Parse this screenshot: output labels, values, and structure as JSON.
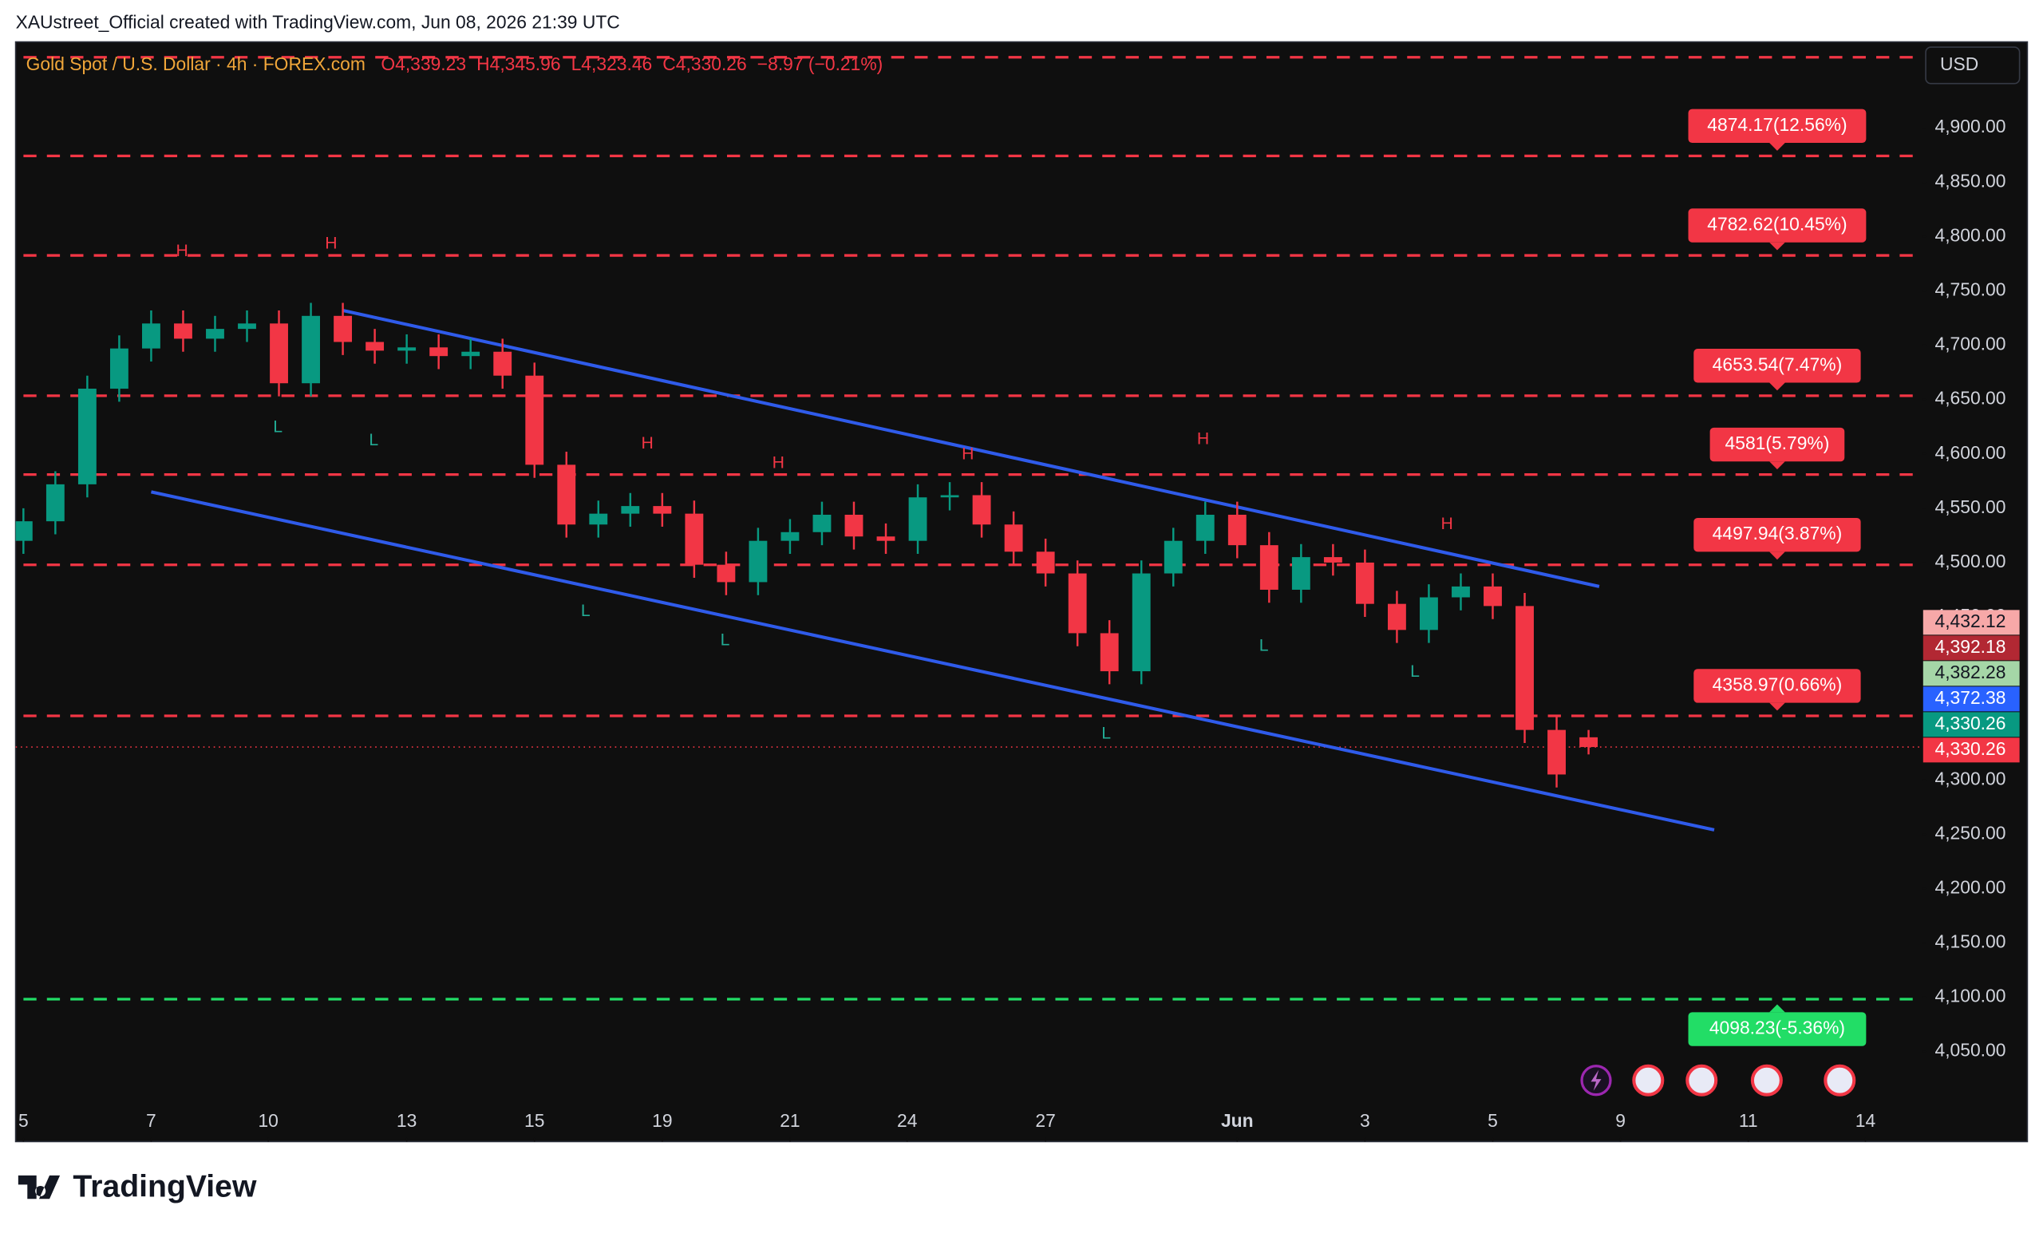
{
  "header": {
    "credit": "XAUstreet_Official created with TradingView.com, Jun 08, 2026 21:39 UTC",
    "symbol": "Gold Spot / U.S. Dollar · 4h · FOREX.com",
    "ohlc": [
      {
        "key": "O",
        "value": "4,339.23"
      },
      {
        "key": "H",
        "value": "4,345.96"
      },
      {
        "key": "L",
        "value": "4,323.46"
      },
      {
        "key": "C",
        "value": "4,330.26"
      }
    ],
    "change": "−8.97 (−0.21%)",
    "currency": "USD"
  },
  "chart_data": {
    "type": "candlestick",
    "x": [
      0,
      3,
      6,
      9,
      12,
      15,
      18,
      21,
      24,
      27,
      30,
      33,
      36,
      39,
      42,
      45,
      48,
      51,
      54,
      57,
      60,
      63,
      66,
      69,
      72,
      75,
      78,
      81,
      84,
      87,
      90,
      93,
      96,
      99,
      102,
      105,
      108,
      111,
      114,
      117,
      120,
      123,
      126,
      129,
      132,
      135,
      138,
      141,
      144,
      147
    ],
    "open": [
      4520,
      4538,
      4572,
      4660,
      4697,
      4720,
      4706,
      4715,
      4720,
      4665,
      4727,
      4703,
      4695,
      4698,
      4690,
      4694,
      4672,
      4590,
      4535,
      4545,
      4552,
      4545,
      4498,
      4482,
      4520,
      4528,
      4544,
      4524,
      4520,
      4560,
      4562,
      4535,
      4510,
      4490,
      4435,
      4400,
      4490,
      4520,
      4544,
      4516,
      4475,
      4505,
      4500,
      4462,
      4438,
      4468,
      4478,
      4460,
      4346,
      4339.23
    ],
    "high": [
      4550,
      4584,
      4672,
      4709,
      4732,
      4732,
      4727,
      4732,
      4732,
      4739,
      4739,
      4715,
      4710,
      4710,
      4706,
      4706,
      4684,
      4602,
      4557,
      4564,
      4564,
      4557,
      4510,
      4532,
      4540,
      4556,
      4556,
      4536,
      4572,
      4574,
      4574,
      4547,
      4522,
      4502,
      4447,
      4502,
      4532,
      4556,
      4556,
      4528,
      4517,
      4517,
      4512,
      4474,
      4480,
      4490,
      4490,
      4472,
      4358,
      4345.96
    ],
    "low": [
      4508,
      4526,
      4560,
      4648,
      4685,
      4694,
      4694,
      4703,
      4653,
      4653,
      4691,
      4683,
      4683,
      4678,
      4678,
      4660,
      4578,
      4523,
      4523,
      4533,
      4533,
      4486,
      4470,
      4470,
      4508,
      4516,
      4512,
      4508,
      4508,
      4548,
      4523,
      4498,
      4478,
      4423,
      4388,
      4388,
      4478,
      4508,
      4504,
      4463,
      4463,
      4488,
      4450,
      4426,
      4426,
      4456,
      4448,
      4334,
      4293,
      4323.46
    ],
    "close": [
      4538,
      4572,
      4660,
      4697,
      4720,
      4706,
      4715,
      4720,
      4665,
      4727,
      4703,
      4695,
      4698,
      4690,
      4694,
      4672,
      4590,
      4535,
      4545,
      4552,
      4545,
      4498,
      4482,
      4520,
      4528,
      4544,
      4524,
      4520,
      4560,
      4562,
      4535,
      4510,
      4490,
      4435,
      4400,
      4490,
      4520,
      4544,
      4516,
      4475,
      4505,
      4500,
      4462,
      4438,
      4468,
      4478,
      4460,
      4346,
      4305,
      4330.26
    ],
    "up_color": "#089981",
    "down_color": "#f23645",
    "xlim": [
      -0.73,
      178.3
    ],
    "xticks": [
      {
        "value": 0,
        "label": "5"
      },
      {
        "value": 12,
        "label": "7"
      },
      {
        "value": 23,
        "label": "10"
      },
      {
        "value": 36,
        "label": "13"
      },
      {
        "value": 48,
        "label": "15"
      },
      {
        "value": 60,
        "label": "19"
      },
      {
        "value": 72,
        "label": "21"
      },
      {
        "value": 83,
        "label": "24"
      },
      {
        "value": 96,
        "label": "27"
      },
      {
        "value": 114,
        "label": "Jun"
      },
      {
        "value": 126,
        "label": "3"
      },
      {
        "value": 138,
        "label": "5"
      },
      {
        "value": 150,
        "label": "9"
      },
      {
        "value": 162,
        "label": "11"
      },
      {
        "value": 173,
        "label": "14"
      }
    ],
    "ylim": [
      3967.2,
      4979.1
    ],
    "yticks": [
      {
        "value": 4050,
        "label": "4,050.00"
      },
      {
        "value": 4100,
        "label": "4,100.00"
      },
      {
        "value": 4150,
        "label": "4,150.00"
      },
      {
        "value": 4200,
        "label": "4,200.00"
      },
      {
        "value": 4250,
        "label": "4,250.00"
      },
      {
        "value": 4300,
        "label": "4,300.00"
      },
      {
        "value": 4350,
        "label": "4,350.00"
      },
      {
        "value": 4400,
        "label": "4,400.00"
      },
      {
        "value": 4450,
        "label": "4,450.00"
      },
      {
        "value": 4500,
        "label": "4,500.00"
      },
      {
        "value": 4550,
        "label": "4,550.00"
      },
      {
        "value": 4600,
        "label": "4,600.00"
      },
      {
        "value": 4650,
        "label": "4,650.00"
      },
      {
        "value": 4700,
        "label": "4,700.00"
      },
      {
        "value": 4750,
        "label": "4,750.00"
      },
      {
        "value": 4800,
        "label": "4,800.00"
      },
      {
        "value": 4850,
        "label": "4,850.00"
      },
      {
        "value": 4900,
        "label": "4,900.00"
      }
    ],
    "levels": [
      {
        "value": 4965,
        "color": "#f23645"
      },
      {
        "value": 4874.17,
        "label": "4874.17(12.56%)",
        "color": "#f23645"
      },
      {
        "value": 4782.62,
        "label": "4782.62(10.45%)",
        "color": "#f23645"
      },
      {
        "value": 4653.54,
        "label": "4653.54(7.47%)",
        "color": "#f23645"
      },
      {
        "value": 4581,
        "label": "4581(5.79%)",
        "color": "#f23645"
      },
      {
        "value": 4497.94,
        "label": "4497.94(3.87%)",
        "color": "#f23645"
      },
      {
        "value": 4358.97,
        "label": "4358.97(0.66%)",
        "color": "#f23645"
      },
      {
        "value": 4098.23,
        "label": "4098.23(-5.36%)",
        "color": "#22dd66"
      }
    ],
    "trendlines": [
      {
        "x": [
          30,
          148
        ],
        "y": [
          4732,
          4478
        ],
        "color": "#2f5bea"
      },
      {
        "x": [
          12,
          158.8
        ],
        "y": [
          4565,
          4254
        ],
        "color": "#2f5bea"
      }
    ],
    "pivots": [
      {
        "text": "H",
        "x": 14.9,
        "y": 4786
      },
      {
        "text": "H",
        "x": 28.9,
        "y": 4793
      },
      {
        "text": "H",
        "x": 58.6,
        "y": 4609
      },
      {
        "text": "H",
        "x": 70.9,
        "y": 4591
      },
      {
        "text": "H",
        "x": 88.7,
        "y": 4599
      },
      {
        "text": "H",
        "x": 110.8,
        "y": 4613
      },
      {
        "text": "H",
        "x": 133.7,
        "y": 4535
      },
      {
        "text": "L",
        "x": 23.9,
        "y": 4624
      },
      {
        "text": "L",
        "x": 32.9,
        "y": 4612
      },
      {
        "text": "L",
        "x": 52.8,
        "y": 4455
      },
      {
        "text": "L",
        "x": 65.9,
        "y": 4428
      },
      {
        "text": "L",
        "x": 101.7,
        "y": 4342
      },
      {
        "text": "L",
        "x": 116.5,
        "y": 4423
      },
      {
        "text": "L",
        "x": 130.7,
        "y": 4399
      }
    ],
    "price_tags": [
      {
        "value": 4432.12,
        "label": "4,432.12",
        "color": "#f7a8a8"
      },
      {
        "value": 4392.18,
        "label": "4,392.18",
        "color": "#b22833"
      },
      {
        "value": 4382.28,
        "label": "4,382.28",
        "color": "#a5d6a7"
      },
      {
        "value": 4372.38,
        "label": "4,372.38",
        "color": "#2962ff"
      },
      {
        "value": 4330.26,
        "label": "4,330.26",
        "color": "#089981"
      },
      {
        "value": 4330.26,
        "label": "4,330.26",
        "color": "#f23645"
      }
    ]
  },
  "footer": {
    "logo": "TradingView"
  }
}
